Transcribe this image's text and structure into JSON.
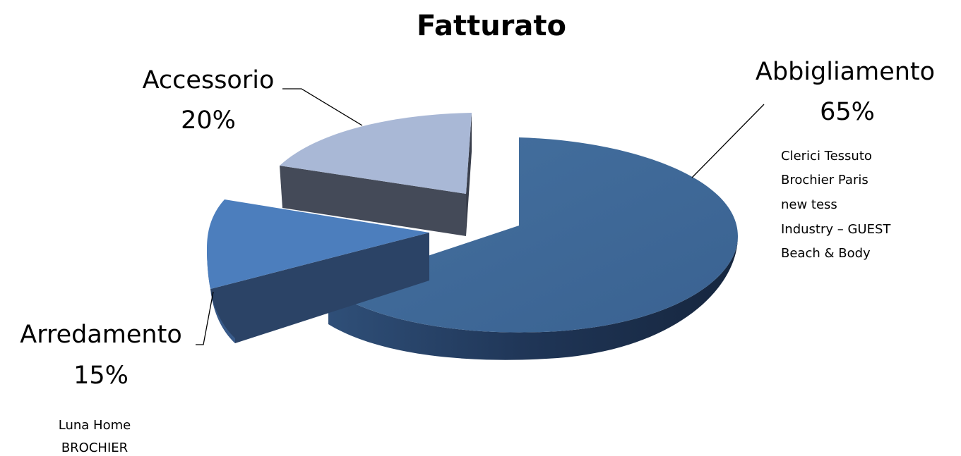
{
  "chart_data": {
    "type": "pie",
    "variant": "3d-exploded",
    "title": "Fatturato",
    "slices": [
      {
        "label": "Abbigliamento",
        "percent_label": "65%",
        "value": 65,
        "color": "#3F689A",
        "notes": [
          "Clerici Tessuto",
          "Brochier Paris",
          "new tess",
          "Industry – GUEST",
          "Beach & Body"
        ]
      },
      {
        "label": "Arredamento",
        "percent_label": "15%",
        "value": 15,
        "color": "#4C7EBD",
        "notes": [
          "Luna Home",
          "BROCHIER"
        ]
      },
      {
        "label": "Accessorio",
        "percent_label": "20%",
        "value": 20,
        "color": "#A9B8D6",
        "side_color": "#444A58",
        "notes": []
      }
    ],
    "legend": "none"
  }
}
